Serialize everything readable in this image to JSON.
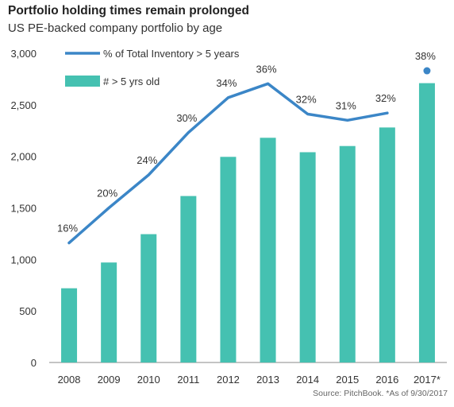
{
  "title": "Portfolio holding times remain prolonged",
  "subtitle": "US PE-backed company portfolio by age",
  "source": "Source: PitchBook. *As of 9/30/2017",
  "chart_data": {
    "type": "bar",
    "categories": [
      "2008",
      "2009",
      "2010",
      "2011",
      "2012",
      "2013",
      "2014",
      "2015",
      "2016",
      "2017*"
    ],
    "ylim": [
      0,
      3000
    ],
    "yticks": [
      0,
      500,
      1000,
      1500,
      2000,
      2500,
      3000
    ],
    "grid": false,
    "legend_position": "top-left",
    "series": [
      {
        "name": "# > 5 yrs old",
        "type": "bar",
        "values": [
          720,
          970,
          1245,
          1615,
          1995,
          2180,
          2040,
          2100,
          2280,
          2710
        ],
        "color": "#45c1b1"
      },
      {
        "name": "% of Total Inventory > 5 years",
        "type": "line",
        "line_values": [
          1160,
          1500,
          1820,
          2230,
          2570,
          2705,
          2410,
          2350,
          2420,
          null
        ],
        "marker_values": [
          null,
          null,
          null,
          null,
          null,
          null,
          null,
          null,
          null,
          2830
        ],
        "labels": [
          "16%",
          "20%",
          "24%",
          "30%",
          "34%",
          "36%",
          "32%",
          "31%",
          "32%",
          "38%"
        ],
        "color": "#3b86c7"
      }
    ]
  }
}
